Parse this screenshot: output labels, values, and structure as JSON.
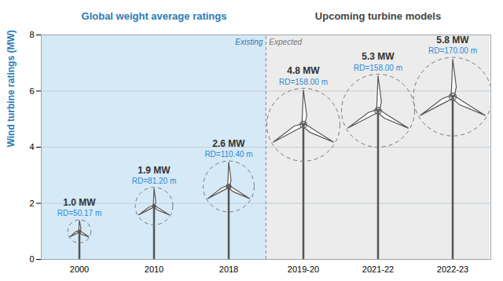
{
  "chart_data": {
    "type": "bar",
    "categories": [
      "2000",
      "2010",
      "2018",
      "2019-20",
      "2021-22",
      "2022-23"
    ],
    "values": [
      1.0,
      1.9,
      2.6,
      4.8,
      5.3,
      5.8
    ],
    "value_labels": [
      "1.0 MW",
      "1.9 MW",
      "2.6 MW",
      "4.8 MW",
      "5.3 MW",
      "5.8 MW"
    ],
    "data_labels": true,
    "rotor_diameters": [
      50.17,
      81.2,
      110.4,
      158.0,
      158.0,
      170.0
    ],
    "rotor_diameter_labels": [
      "RD=50.17 m",
      "RD=81.20 m",
      "RD=110.40 m",
      "RD=158.00 m",
      "RD=158.00 m",
      "RD=170.00 m"
    ],
    "y_label": "Wind turbine ratings (MW)",
    "ylim": [
      0,
      8
    ],
    "yticks": [
      0,
      2,
      4,
      6,
      8
    ],
    "grid": true,
    "color": "#555555",
    "sections": [
      {
        "label": "Existing",
        "title": "Global weight average ratings",
        "categories": [
          "2000",
          "2010",
          "2018"
        ],
        "color": "#d6e9f6"
      },
      {
        "label": "Expected",
        "title": "Upcoming turbine models",
        "categories": [
          "2019-20",
          "2021-22",
          "2022-23"
        ],
        "color": "#ececec"
      }
    ]
  }
}
